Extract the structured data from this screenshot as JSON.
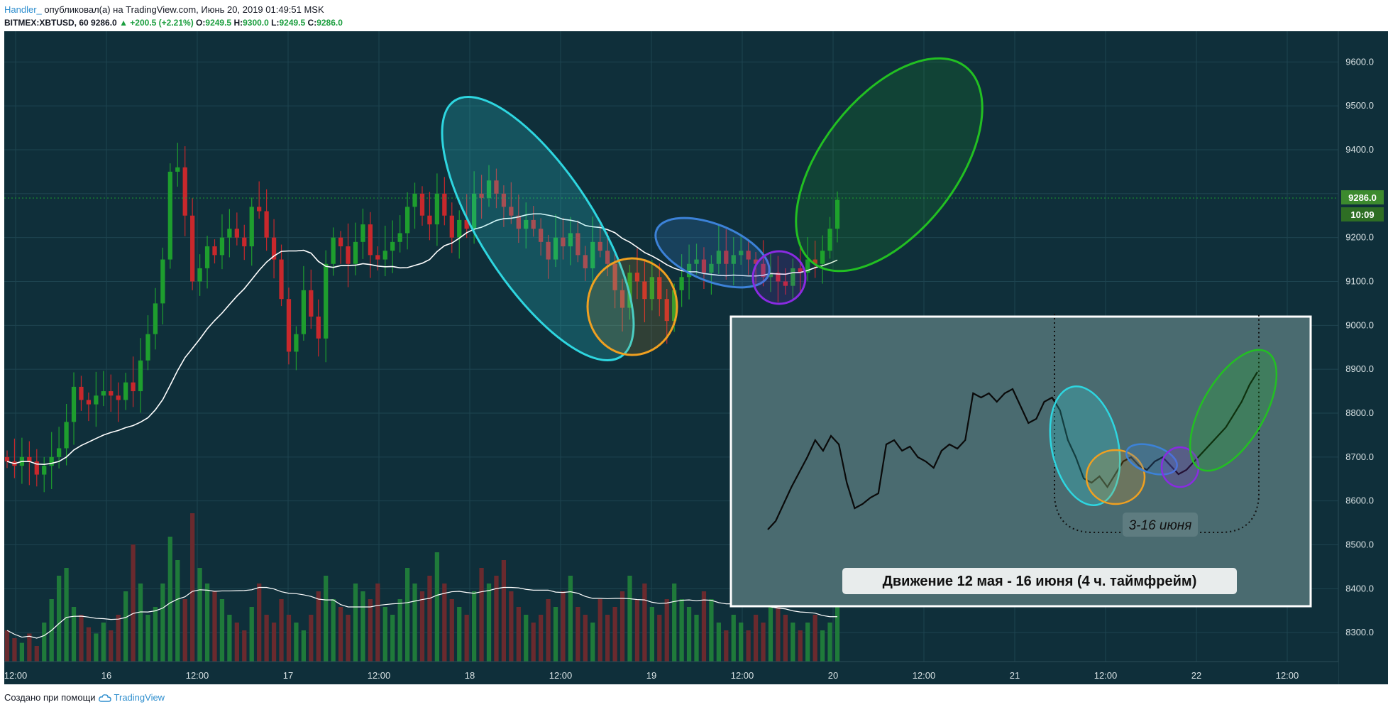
{
  "header": {
    "author": "Handler_",
    "published": "опубликовал(а) на TradingView.com, Июнь 20, 2019 01:49:51 MSK",
    "symbol": "BITMEX:XBTUSD, 60",
    "last": "9286.0",
    "change": "+200.5 (+2.21%)",
    "o_label": "O:",
    "o": "9249.5",
    "h_label": "H:",
    "h": "9300.0",
    "l_label": "L:",
    "l": "9249.5",
    "c_label": "C:",
    "c": "9286.0"
  },
  "footer": {
    "made_with": "Создано при помощи",
    "brand": "TradingView"
  },
  "price_badge": "9286.0",
  "time_badge": "10:09",
  "inset": {
    "caption": "Движение 12 мая - 16 июня (4 ч. таймфрейм)",
    "range_label": "3-16 июня"
  },
  "colors": {
    "background": "#0f2f3a",
    "up": "#1e9e2e",
    "down": "#c8282c",
    "ma": "#ffffff",
    "cyan_ellipse": "#2ed6e0",
    "orange_ellipse": "#f0a020",
    "blue_ellipse": "#3c82d8",
    "purple_ellipse": "#8a2be2",
    "green_ellipse": "#22c022"
  },
  "chart_data": {
    "type": "candlestick",
    "y_axis": [
      "9600.0",
      "9500.0",
      "9400.0",
      "9300.0",
      "9200.0",
      "9100.0",
      "9000.0",
      "8900.0",
      "8800.0",
      "8700.0",
      "8600.0",
      "8500.0",
      "8400.0",
      "8300.0"
    ],
    "ylim": [
      8234,
      9670
    ],
    "x_axis": [
      "12:00",
      "16",
      "12:00",
      "17",
      "12:00",
      "18",
      "12:00",
      "19",
      "12:00",
      "20",
      "12:00",
      "21",
      "12:00",
      "22",
      "12:00"
    ],
    "closes": [
      8690,
      8680,
      8700,
      8690,
      8660,
      8680,
      8700,
      8720,
      8780,
      8860,
      8830,
      8820,
      8840,
      8850,
      8840,
      8830,
      8870,
      8850,
      8920,
      8980,
      9050,
      9150,
      9350,
      9360,
      9250,
      9100,
      9130,
      9180,
      9160,
      9200,
      9220,
      9200,
      9180,
      9270,
      9260,
      9200,
      9150,
      9060,
      8940,
      8980,
      9080,
      9020,
      8970,
      9140,
      9200,
      9180,
      9140,
      9190,
      9230,
      9160,
      9150,
      9170,
      9190,
      9210,
      9270,
      9300,
      9250,
      9230,
      9300,
      9250,
      9200,
      9240,
      9220,
      9300,
      9290,
      9330,
      9300,
      9270,
      9250,
      9220,
      9240,
      9220,
      9190,
      9150,
      9200,
      9180,
      9210,
      9160,
      9130,
      9190,
      9170,
      9140,
      9080,
      9040,
      9120,
      9100,
      9060,
      9110,
      9060,
      9010,
      9080,
      9110,
      9140,
      9150,
      9120,
      9140,
      9170,
      9140,
      9160,
      9170,
      9150,
      9140,
      9110,
      9120,
      9100,
      9090,
      9130,
      9120,
      9150,
      9140,
      9170,
      9220,
      9286
    ],
    "volume_levels": [
      0.2,
      0.15,
      0.12,
      0.18,
      0.1,
      0.25,
      0.4,
      0.55,
      0.6,
      0.35,
      0.3,
      0.22,
      0.18,
      0.25,
      0.2,
      0.3,
      0.45,
      0.75,
      0.5,
      0.3,
      0.35,
      0.5,
      0.8,
      0.65,
      0.4,
      0.95,
      0.6,
      0.5,
      0.45,
      0.4,
      0.3,
      0.25,
      0.2,
      0.35,
      0.5,
      0.3,
      0.25,
      0.4,
      0.3,
      0.25,
      0.2,
      0.3,
      0.45,
      0.55,
      0.4,
      0.35,
      0.3,
      0.5,
      0.45,
      0.4,
      0.5,
      0.35,
      0.3,
      0.4,
      0.6,
      0.5,
      0.45,
      0.55,
      0.7,
      0.5,
      0.4,
      0.35,
      0.3,
      0.45,
      0.6,
      0.5,
      0.55,
      0.65,
      0.45,
      0.35,
      0.3,
      0.25,
      0.3,
      0.4,
      0.35,
      0.45,
      0.55,
      0.35,
      0.3,
      0.25,
      0.4,
      0.3,
      0.35,
      0.45,
      0.55,
      0.4,
      0.5,
      0.35,
      0.3,
      0.4,
      0.5,
      0.4,
      0.35,
      0.3,
      0.45,
      0.4,
      0.25,
      0.2,
      0.3,
      0.25,
      0.2,
      0.3,
      0.25,
      0.35,
      0.4,
      0.3,
      0.25,
      0.2,
      0.25,
      0.3,
      0.2,
      0.25,
      0.35
    ],
    "ma_period": 20
  }
}
